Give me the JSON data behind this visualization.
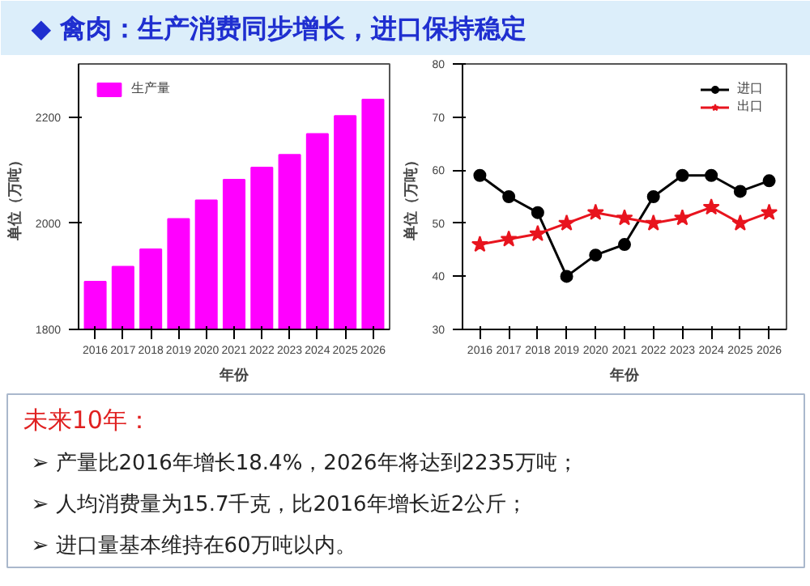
{
  "chart_data": [
    {
      "type": "bar",
      "title": "◆ 禽肉：生产消费同步增长，进口保持稳定",
      "xlabel": "年份",
      "ylabel": "单位（万吨）",
      "categories": [
        "2016",
        "2017",
        "2018",
        "2019",
        "2020",
        "2021",
        "2022",
        "2023",
        "2024",
        "2025",
        "2026"
      ],
      "series": [
        {
          "name": "生产量",
          "color": "#ff00ff",
          "values": [
            1890,
            1918,
            1951,
            2008,
            2043,
            2082,
            2105,
            2129,
            2168,
            2202,
            2233
          ]
        }
      ],
      "ylim": [
        1800,
        2300
      ],
      "yticks": [
        1800,
        2000,
        2200
      ],
      "legend": "top left"
    },
    {
      "type": "line",
      "xlabel": "年份",
      "ylabel": "单位（万吨）",
      "categories": [
        "2016",
        "2017",
        "2018",
        "2019",
        "2020",
        "2021",
        "2022",
        "2023",
        "2024",
        "2025",
        "2026"
      ],
      "series": [
        {
          "name": "进口",
          "color": "#000000",
          "marker": "circle",
          "values": [
            59,
            55,
            52,
            40,
            44,
            46,
            55,
            59,
            59,
            56,
            58
          ]
        },
        {
          "name": "出口",
          "color": "#e8141e",
          "marker": "star",
          "values": [
            46,
            47,
            48,
            50,
            52,
            51,
            50,
            51,
            53,
            50,
            52
          ]
        }
      ],
      "ylim": [
        30,
        80
      ],
      "yticks": [
        30,
        40,
        50,
        60,
        70,
        80
      ],
      "legend": "top right",
      "line_style": "solid"
    },
    {
      "type": "other",
      "title": "未来10年：",
      "annotations": [
        "➢ 产量比2016年增长18.4%，2026年将达到2235万吨；",
        "➢ 人均消费量为15.7千克，比2016年增长近2公斤；",
        "➢ 进口量基本维持在60万吨以内。"
      ]
    }
  ]
}
